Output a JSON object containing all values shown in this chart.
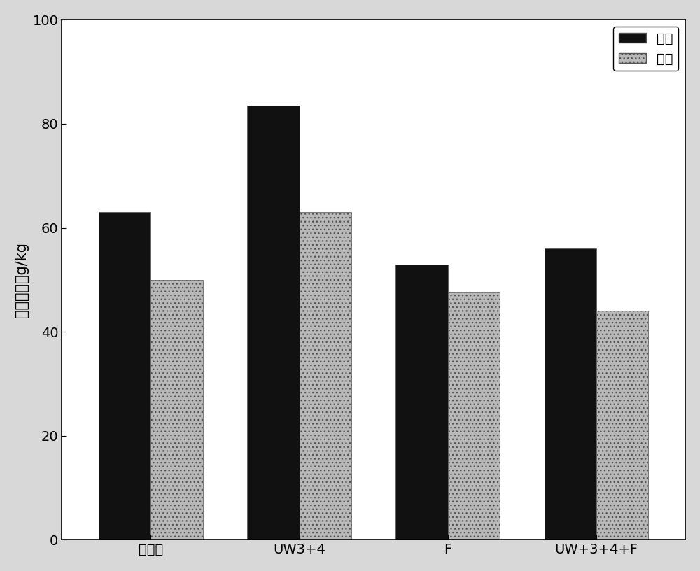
{
  "categories": [
    "未处理",
    "UW3+4",
    "F",
    "UW+3+4+F"
  ],
  "series": [
    {
      "name": "燕麦",
      "values": [
        63,
        83.5,
        53,
        56
      ],
      "color": "#111111",
      "hatch": ""
    },
    {
      "name": "大麦",
      "values": [
        50,
        63,
        47.5,
        44
      ],
      "color": "#b8b8b8",
      "hatch": "..."
    }
  ],
  "ylabel": "植物含盐，g/kg",
  "ylim": [
    0,
    100
  ],
  "yticks": [
    0,
    20,
    40,
    60,
    80,
    100
  ],
  "bar_width": 0.35,
  "fig_bg_color": "#d8d8d8",
  "plot_bg_color": "#ffffff",
  "legend_loc": "upper right",
  "label_fontsize": 15,
  "tick_fontsize": 14,
  "legend_fontsize": 14
}
